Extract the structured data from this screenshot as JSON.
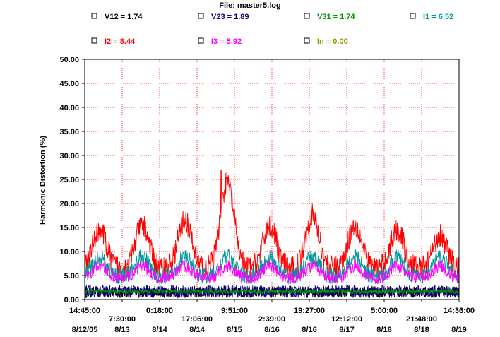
{
  "chart_data": {
    "type": "line",
    "title": "File: master5.log",
    "xlabel": "",
    "ylabel": "Harmonic Distortion (%)",
    "ylim": [
      0,
      50
    ],
    "yticks": [
      "0.00",
      "5.00",
      "10.00",
      "15.00",
      "20.00",
      "25.00",
      "30.00",
      "35.00",
      "40.00",
      "45.00",
      "50.00"
    ],
    "grid": true,
    "legend_position": "top",
    "x_ticks": [
      {
        "time": "14:45:00",
        "date": "8/12/05"
      },
      {
        "time": "7:30:00",
        "date": "8/13"
      },
      {
        "time": "0:18:00",
        "date": "8/14"
      },
      {
        "time": "17:06:00",
        "date": "8/14"
      },
      {
        "time": "9:51:00",
        "date": "8/15"
      },
      {
        "time": "2:39:00",
        "date": "8/16"
      },
      {
        "time": "19:27:00",
        "date": "8/16"
      },
      {
        "time": "12:12:00",
        "date": "8/17"
      },
      {
        "time": "5:00:00",
        "date": "8/18"
      },
      {
        "time": "21:48:00",
        "date": "8/18"
      },
      {
        "time": "14:36:00",
        "date": "8/19"
      }
    ],
    "series": [
      {
        "name": "V12",
        "label": "V12 = 1.74",
        "color": "#000000",
        "level": 1.74
      },
      {
        "name": "V23",
        "label": "V23 = 1.89",
        "color": "#000080",
        "level": 1.89
      },
      {
        "name": "V31",
        "label": "V31 = 1.74",
        "color": "#009900",
        "level": 1.74
      },
      {
        "name": "I1",
        "label": "I1 = 6.52",
        "color": "#009999",
        "level": 6.52
      },
      {
        "name": "I2",
        "label": "I2 = 8.44",
        "color": "#ff0000",
        "level": 8.44
      },
      {
        "name": "I3",
        "label": "I3 = 5.92",
        "color": "#ff00ff",
        "level": 5.92
      },
      {
        "name": "In",
        "label": "In = 0.00",
        "color": "#999900",
        "level": 0.0
      }
    ],
    "daily_peaks_I2": [
      17,
      18,
      19,
      27,
      18,
      20,
      18,
      17,
      16
    ],
    "max_value": 27
  }
}
